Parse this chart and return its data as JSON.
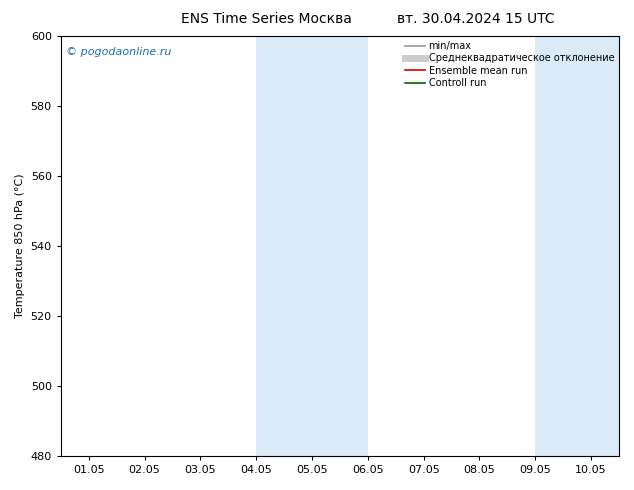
{
  "title": "ENS Time Series Москва",
  "title_right": "вт. 30.04.2024 15 UTC",
  "ylabel": "Temperature 850 hPa (°C)",
  "ylim": [
    480,
    600
  ],
  "yticks": [
    480,
    500,
    520,
    540,
    560,
    580,
    600
  ],
  "xtick_labels": [
    "01.05",
    "02.05",
    "03.05",
    "04.05",
    "05.05",
    "06.05",
    "07.05",
    "08.05",
    "09.05",
    "10.05"
  ],
  "shaded_bands": [
    {
      "xstart": 3.0,
      "xend": 5.0
    },
    {
      "xstart": 8.0,
      "xend": 9.5
    }
  ],
  "shade_color": "#daeaf6",
  "copyright_text": "© pogodaonline.ru",
  "copyright_color": "#1a6faf",
  "legend_entries": [
    {
      "label": "min/max",
      "color": "#999999",
      "lw": 1.2
    },
    {
      "label": "Среднеквадратическое отклонение",
      "color": "#cccccc",
      "lw": 5
    },
    {
      "label": "Ensemble mean run",
      "color": "#cc0000",
      "lw": 1.2
    },
    {
      "label": "Controll run",
      "color": "#006600",
      "lw": 1.2
    }
  ],
  "background_color": "#ffffff",
  "title_fontsize": 10,
  "axis_label_fontsize": 8,
  "tick_fontsize": 8,
  "legend_fontsize": 7,
  "copyright_fontsize": 8
}
